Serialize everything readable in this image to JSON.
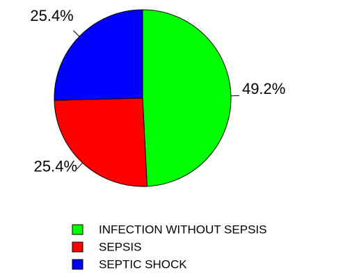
{
  "chart_data": {
    "type": "pie",
    "categories": [
      "INFECTION WITHOUT SEPSIS",
      "SEPSIS",
      "SEPTIC SHOCK"
    ],
    "values": [
      49.2,
      25.4,
      25.4
    ],
    "value_labels": [
      "49.2%",
      "25.4%",
      "25.4%"
    ],
    "colors": [
      "#00ff00",
      "#ff0000",
      "#0000ff"
    ],
    "legend": "bottom"
  }
}
